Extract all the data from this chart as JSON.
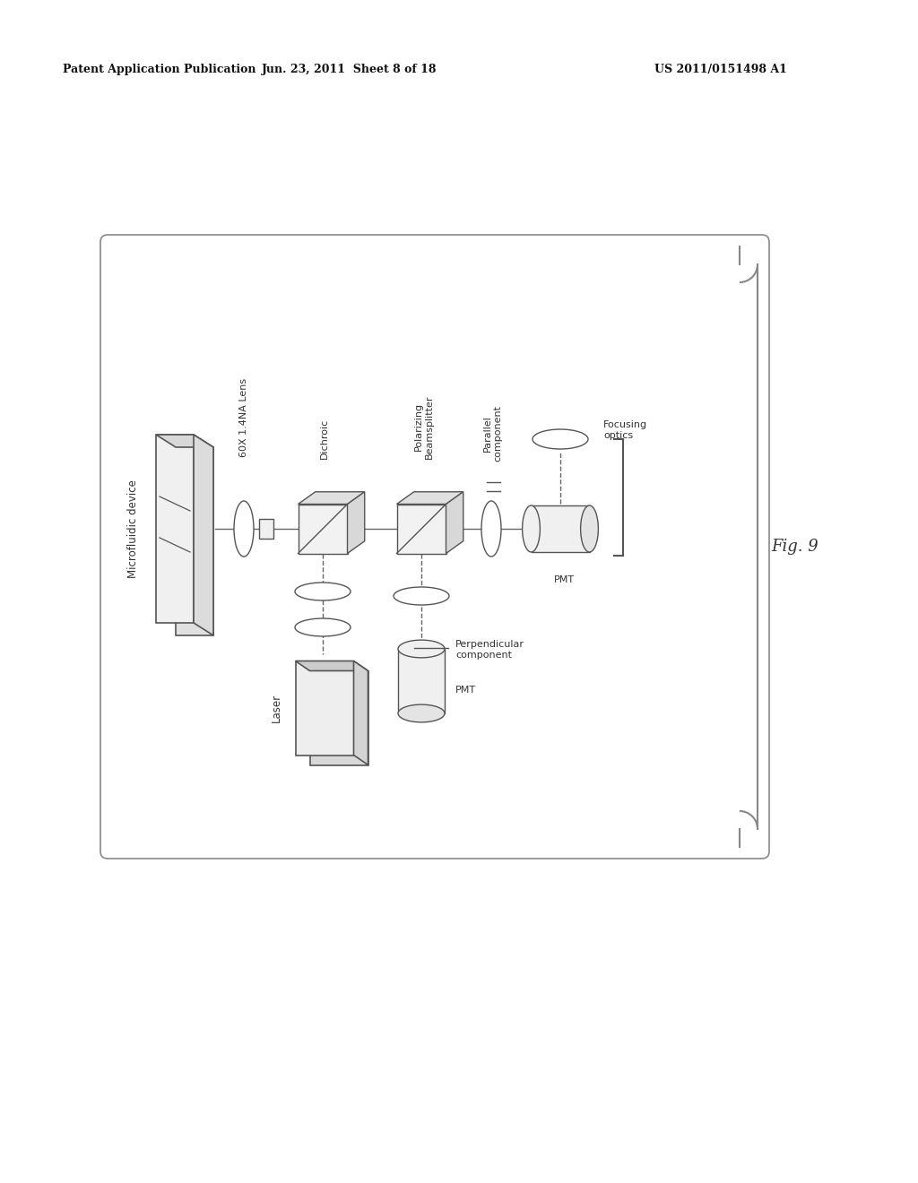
{
  "bg_color": "#ffffff",
  "header_left": "Patent Application Publication",
  "header_mid": "Jun. 23, 2011  Sheet 8 of 18",
  "header_right": "US 2011/0151498 A1",
  "fig_label": "Fig. 9",
  "line_color": "#666666",
  "box_color": "#555555",
  "text_color": "#333333",
  "header_fontsize": 9,
  "label_fontsize": 8,
  "fig_fontsize": 13
}
